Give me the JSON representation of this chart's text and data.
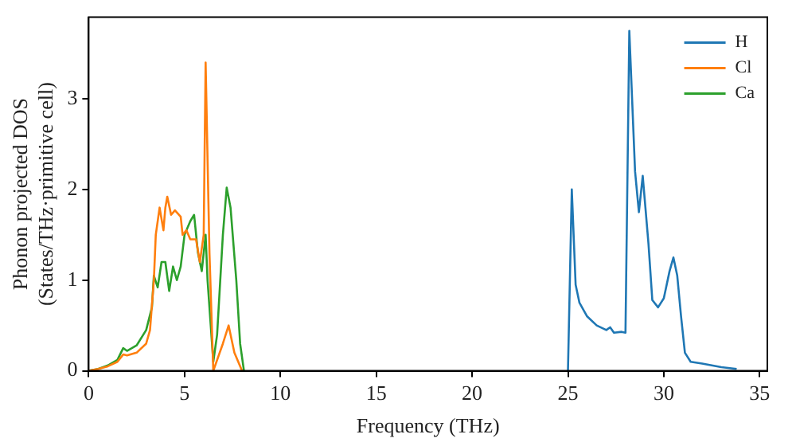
{
  "chart_data": {
    "type": "line",
    "xlabel": "Frequency (THz)",
    "ylabel": "Phonon projected DOS\n(States/THz·primitive cell)",
    "xlim": [
      0,
      35.4
    ],
    "ylim": [
      0,
      3.9
    ],
    "xticks": [
      0,
      5,
      10,
      15,
      20,
      25,
      30,
      35
    ],
    "yticks": [
      0,
      1,
      2,
      3
    ],
    "grid": false,
    "legend": "top right",
    "marker": "none",
    "line_style": "solid",
    "series": [
      {
        "name": "H",
        "color": "#1f77b4",
        "x": [
          25,
          25.2,
          25.4,
          25.6,
          26,
          26.5,
          27,
          27.2,
          27.4,
          27.8,
          28,
          28.2,
          28.5,
          28.7,
          28.9,
          29.2,
          29.4,
          29.7,
          30,
          30.3,
          30.5,
          30.7,
          30.9,
          31.1,
          31.4,
          32,
          33,
          33.8
        ],
        "values": [
          0,
          2.0,
          0.95,
          0.75,
          0.6,
          0.5,
          0.45,
          0.48,
          0.42,
          0.43,
          0.42,
          3.75,
          2.2,
          1.75,
          2.15,
          1.4,
          0.78,
          0.7,
          0.8,
          1.1,
          1.25,
          1.05,
          0.6,
          0.2,
          0.1,
          0.08,
          0.04,
          0.02
        ]
      },
      {
        "name": "Cl",
        "color": "#ff7f0e",
        "x": [
          0,
          0.5,
          1,
          1.5,
          1.8,
          2,
          2.5,
          3,
          3.2,
          3.4,
          3.5,
          3.7,
          3.9,
          4,
          4.1,
          4.3,
          4.5,
          4.8,
          4.9,
          5.1,
          5.3,
          5.6,
          5.8,
          6,
          6.1,
          6.3,
          6.5,
          7,
          7.3,
          7.6,
          8
        ],
        "values": [
          0,
          0.02,
          0.05,
          0.1,
          0.18,
          0.17,
          0.2,
          0.3,
          0.45,
          1.0,
          1.5,
          1.8,
          1.55,
          1.8,
          1.92,
          1.72,
          1.77,
          1.7,
          1.5,
          1.55,
          1.45,
          1.45,
          1.2,
          1.5,
          3.4,
          1.3,
          0,
          0.3,
          0.5,
          0.2,
          0
        ]
      },
      {
        "name": "Ca",
        "color": "#2ca02c",
        "x": [
          0,
          0.5,
          1,
          1.5,
          1.8,
          2,
          2.5,
          3,
          3.3,
          3.4,
          3.6,
          3.8,
          4,
          4.2,
          4.4,
          4.6,
          4.8,
          5,
          5.3,
          5.5,
          5.7,
          5.9,
          6.1,
          6.2,
          6.5,
          6.7,
          7,
          7.2,
          7.4,
          7.7,
          7.9,
          8.1
        ],
        "values": [
          0,
          0.02,
          0.06,
          0.12,
          0.25,
          0.22,
          0.28,
          0.45,
          0.7,
          1.05,
          0.92,
          1.2,
          1.2,
          0.88,
          1.15,
          1.0,
          1.15,
          1.5,
          1.65,
          1.72,
          1.3,
          1.1,
          1.5,
          1.0,
          0.1,
          0.4,
          1.5,
          2.02,
          1.8,
          1.0,
          0.3,
          0
        ]
      }
    ]
  }
}
